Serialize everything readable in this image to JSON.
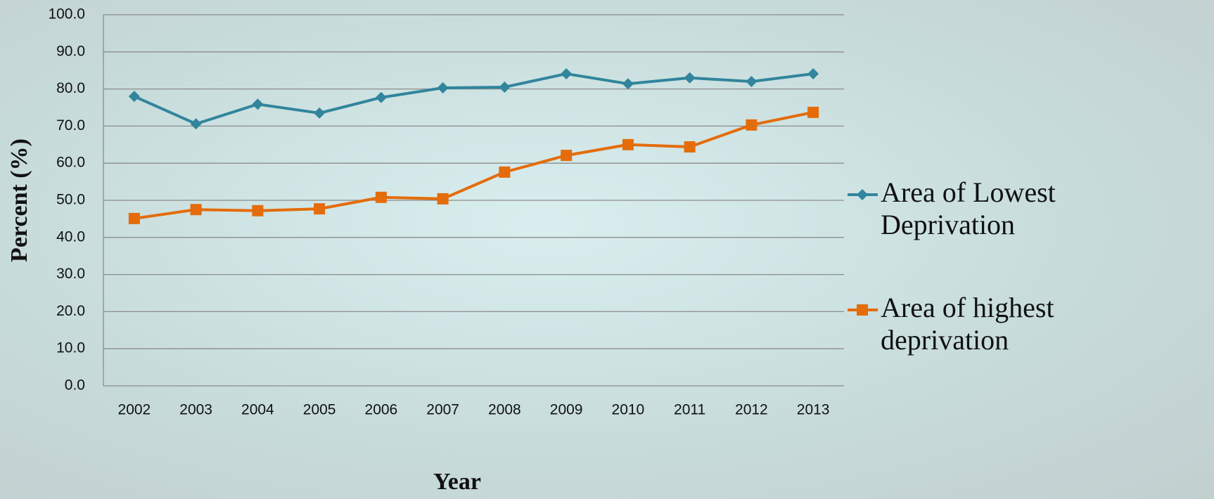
{
  "chart_data": {
    "type": "line",
    "x_label": "Year",
    "y_label": "Percent (%)",
    "categories": [
      "2002",
      "2003",
      "2004",
      "2005",
      "2006",
      "2007",
      "2008",
      "2009",
      "2010",
      "2011",
      "2012",
      "2013"
    ],
    "series": [
      {
        "name": "Area of Lowest Deprivation",
        "color": "#31859c",
        "marker": "diamond",
        "values": [
          78.0,
          70.6,
          75.9,
          73.5,
          77.7,
          80.3,
          80.5,
          84.1,
          81.4,
          83.0,
          82.0,
          84.1
        ]
      },
      {
        "name": "Area of highest deprivation",
        "color": "#e46c0a",
        "marker": "square",
        "values": [
          45.1,
          47.5,
          47.2,
          47.7,
          50.8,
          50.4,
          57.6,
          62.1,
          65.0,
          64.4,
          70.3,
          73.7
        ]
      }
    ],
    "ylim": [
      0,
      100
    ],
    "yticks": [
      {
        "value": 0,
        "label": "0.0"
      },
      {
        "value": 10,
        "label": "10.0"
      },
      {
        "value": 20,
        "label": "20.0"
      },
      {
        "value": 30,
        "label": "30.0"
      },
      {
        "value": 40,
        "label": "40.0"
      },
      {
        "value": 50,
        "label": "50.0"
      },
      {
        "value": 60,
        "label": "60.0"
      },
      {
        "value": 70,
        "label": "70.0"
      },
      {
        "value": 80,
        "label": "80.0"
      },
      {
        "value": 90,
        "label": "90.0"
      },
      {
        "value": 100,
        "label": "100.0"
      }
    ],
    "grid": true,
    "legend": "right"
  }
}
